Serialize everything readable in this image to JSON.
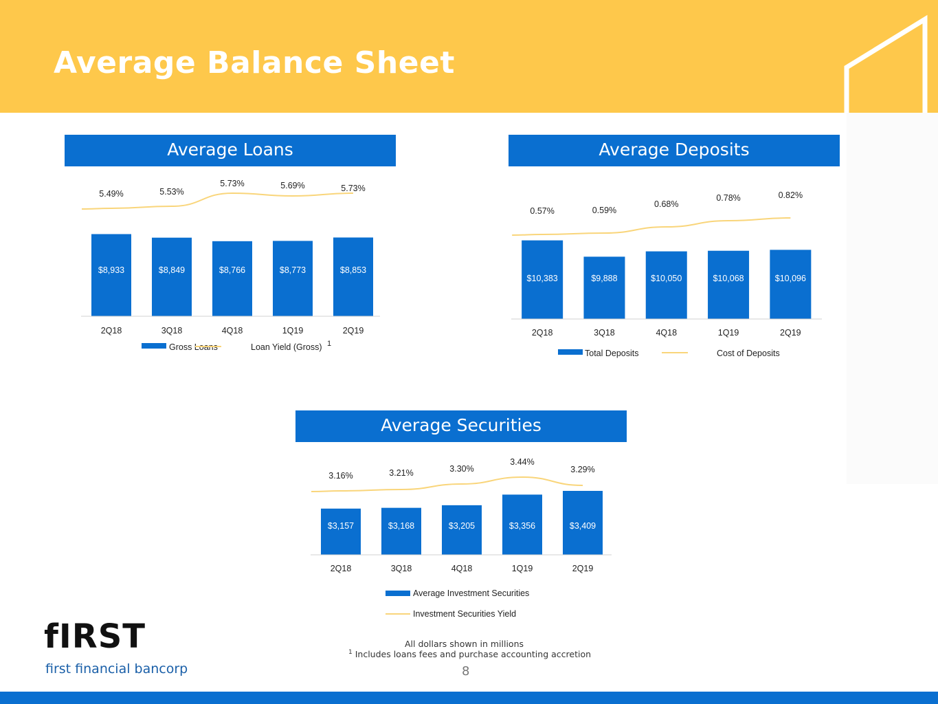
{
  "title": "Average Balance Sheet",
  "colors": {
    "header": "#FEC84B",
    "bar": "#0A6FD0",
    "line": "#F9D57A"
  },
  "panels": {
    "loans": {
      "title": "Average Loans"
    },
    "deposits": {
      "title": "Average Deposits"
    },
    "securities": {
      "title": "Average Securities"
    }
  },
  "chart_data": [
    {
      "type": "bar",
      "title": "Average Loans",
      "categories": [
        "2Q18",
        "3Q18",
        "4Q18",
        "1Q19",
        "2Q19"
      ],
      "series": [
        {
          "name": "Gross Loans",
          "values": [
            8933,
            8849,
            8766,
            8773,
            8853
          ],
          "labels": [
            "$8,933",
            "$8,849",
            "$8,766",
            "$8,773",
            "$8,853"
          ]
        },
        {
          "name": "Loan Yield (Gross)",
          "values": [
            5.49,
            5.53,
            5.73,
            5.69,
            5.73
          ],
          "labels": [
            "5.49%",
            "5.53%",
            "5.73%",
            "5.69%",
            "5.73%"
          ]
        }
      ],
      "legend": [
        "Gross Loans",
        "Loan Yield (Gross)"
      ],
      "legend_superscript": "1"
    },
    {
      "type": "bar",
      "title": "Average Deposits",
      "categories": [
        "2Q18",
        "3Q18",
        "4Q18",
        "1Q19",
        "2Q19"
      ],
      "series": [
        {
          "name": "Total Deposits",
          "values": [
            10383,
            9888,
            10050,
            10068,
            10096
          ],
          "labels": [
            "$10,383",
            "$9,888",
            "$10,050",
            "$10,068",
            "$10,096"
          ]
        },
        {
          "name": "Cost of Deposits",
          "values": [
            0.57,
            0.59,
            0.68,
            0.78,
            0.82
          ],
          "labels": [
            "0.57%",
            "0.59%",
            "0.68%",
            "0.78%",
            "0.82%"
          ]
        }
      ],
      "legend": [
        "Total Deposits",
        "Cost of Deposits"
      ]
    },
    {
      "type": "bar",
      "title": "Average Securities",
      "categories": [
        "2Q18",
        "3Q18",
        "4Q18",
        "1Q19",
        "2Q19"
      ],
      "series": [
        {
          "name": "Average Investment Securities",
          "values": [
            3157,
            3168,
            3205,
            3356,
            3409
          ],
          "labels": [
            "$3,157",
            "$3,168",
            "$3,205",
            "$3,356",
            "$3,409"
          ]
        },
        {
          "name": "Investment Securities Yield",
          "values": [
            3.16,
            3.21,
            3.3,
            3.44,
            3.29
          ],
          "labels": [
            "3.16%",
            "3.21%",
            "3.30%",
            "3.44%",
            "3.29%"
          ]
        }
      ],
      "legend": [
        "Average Investment Securities",
        "Investment Securities Yield"
      ]
    }
  ],
  "footnotes": {
    "dollars": "All dollars shown in millions",
    "note_marker": "1",
    "note": "Includes loans fees and purchase accounting accretion"
  },
  "page_number": "8",
  "logo": {
    "word": "fIRST",
    "sub": "first financial bancorp"
  }
}
